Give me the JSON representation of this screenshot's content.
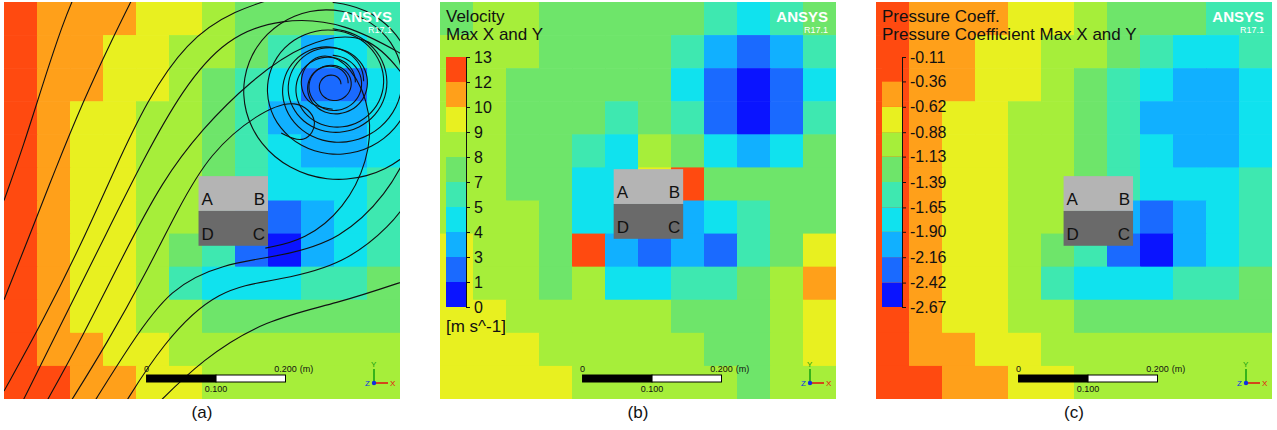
{
  "chart_data": [
    {
      "type": "streamlines",
      "panel_label": "(a)",
      "logo": "ANSYS",
      "version": "R17.1",
      "xlim": [
        0,
        0.57
      ],
      "ylim": [
        0,
        0.57
      ],
      "levels": [
        -2.67,
        -2.42,
        -2.16,
        -1.9,
        -1.65,
        -1.39,
        -1.13,
        -0.88,
        -0.62,
        -0.36,
        -0.11
      ],
      "colors": [
        "#0a14ff",
        "#1a6aff",
        "#11b0ff",
        "#10e2ee",
        "#3ee8b0",
        "#6ee56a",
        "#a6ee3a",
        "#e8f020",
        "#ffa01a",
        "#ff4a10"
      ],
      "cells": [
        [
          -0.2,
          -0.5,
          -0.5,
          -0.5,
          -0.75,
          -0.75,
          -1.0,
          -1.25,
          -1.25,
          -1.25,
          -1.5,
          -1.5
        ],
        [
          -0.2,
          -0.5,
          -0.5,
          -0.75,
          -0.75,
          -1.0,
          -1.0,
          -1.25,
          -1.5,
          -2.0,
          -1.78,
          -1.5
        ],
        [
          -0.2,
          -0.5,
          -0.5,
          -0.75,
          -0.75,
          -1.0,
          -1.25,
          -1.5,
          -1.78,
          -2.3,
          -2.3,
          -1.78
        ],
        [
          -0.2,
          -0.5,
          -0.75,
          -0.75,
          -1.0,
          -1.0,
          -1.25,
          -1.5,
          -2.0,
          -2.0,
          -2.0,
          -1.78
        ],
        [
          -0.2,
          -0.5,
          -0.75,
          -0.75,
          -1.0,
          -1.0,
          -1.25,
          -1.5,
          -1.78,
          -2.0,
          -2.0,
          -1.78
        ],
        [
          -0.2,
          -0.5,
          -0.75,
          -0.75,
          -1.0,
          -1.0,
          -1.25,
          -1.5,
          -1.78,
          -1.78,
          -1.78,
          -1.5
        ],
        [
          -0.2,
          -0.5,
          -0.75,
          -0.75,
          -1.0,
          -1.0,
          -1.5,
          -2.0,
          -2.3,
          -2.0,
          -1.78,
          -1.5
        ],
        [
          -0.2,
          -0.5,
          -0.75,
          -0.75,
          -1.0,
          -1.25,
          -1.5,
          -2.3,
          -2.55,
          -2.0,
          -1.78,
          -1.5
        ],
        [
          -0.2,
          -0.5,
          -0.75,
          -0.75,
          -1.0,
          -1.5,
          -1.78,
          -1.78,
          -1.78,
          -1.5,
          -1.5,
          -1.25
        ],
        [
          -0.2,
          -0.5,
          -0.75,
          -0.75,
          -1.0,
          -1.0,
          -1.25,
          -1.25,
          -1.25,
          -1.25,
          -1.25,
          -1.25
        ],
        [
          -0.2,
          -0.5,
          -0.5,
          -0.75,
          -0.75,
          -1.0,
          -1.0,
          -1.0,
          -1.0,
          -1.0,
          -1.0,
          -1.0
        ],
        [
          -0.2,
          -0.2,
          -0.5,
          -0.5,
          -0.75,
          -0.75,
          -1.0,
          -1.0,
          -1.0,
          -1.0,
          -1.0,
          -1.0
        ]
      ],
      "building": {
        "x": [
          0.28,
          0.38
        ],
        "y": [
          0.22,
          0.32
        ],
        "labels": [
          "A",
          "B",
          "C",
          "D"
        ]
      },
      "scale_bar": {
        "ticks": [
          0,
          {
            "value": 0.1,
            "label": "0.100"
          },
          {
            "value": 0.2,
            "label": "0.200"
          }
        ],
        "unit": "(m)"
      },
      "axes_triad": [
        "X",
        "Y",
        "Z"
      ]
    },
    {
      "type": "contour",
      "panel_label": "(b)",
      "logo": "ANSYS",
      "version": "R17.1",
      "title": "Velocity",
      "subtitle": "Max X and Y",
      "unit": "[m s^-1]",
      "xlim": [
        0,
        0.57
      ],
      "ylim": [
        0,
        0.57
      ],
      "colorbar_range": [
        0,
        13
      ],
      "colorbar_ticks": [
        0,
        {
          "value": 1.3,
          "label": "1"
        },
        {
          "value": 2.6,
          "label": "3"
        },
        {
          "value": 3.9,
          "label": "4"
        },
        {
          "value": 5.2,
          "label": "5"
        },
        {
          "value": 6.5,
          "label": "7"
        },
        {
          "value": 7.8,
          "label": "8"
        },
        {
          "value": 9.1,
          "label": "9"
        },
        {
          "value": 10.4,
          "label": "10"
        },
        {
          "value": 11.7,
          "label": "12"
        },
        13
      ],
      "colors": [
        "#0a14ff",
        "#1a6aff",
        "#11b0ff",
        "#10e2ee",
        "#3ee8b0",
        "#6ee56a",
        "#a6ee3a",
        "#e8f020",
        "#ffa01a",
        "#ff4a10"
      ],
      "cells": [
        [
          7.15,
          8.45,
          8.45,
          7.15,
          7.15,
          7.15,
          7.15,
          7.15,
          5.85,
          4.55,
          5.85,
          7.15
        ],
        [
          8.45,
          8.45,
          8.45,
          7.15,
          7.15,
          7.15,
          7.15,
          5.85,
          3.25,
          1.95,
          3.25,
          5.85
        ],
        [
          8.45,
          8.45,
          7.15,
          7.15,
          7.15,
          7.15,
          7.15,
          4.55,
          1.95,
          0.65,
          1.95,
          4.55
        ],
        [
          8.45,
          8.45,
          7.15,
          7.15,
          7.15,
          5.85,
          7.15,
          5.85,
          1.95,
          0.65,
          1.95,
          5.85
        ],
        [
          8.45,
          8.45,
          7.15,
          7.15,
          5.85,
          4.55,
          8.45,
          7.15,
          4.55,
          3.25,
          4.55,
          7.15
        ],
        [
          8.45,
          8.45,
          7.15,
          7.15,
          4.55,
          4.55,
          9.75,
          12.35,
          7.15,
          7.15,
          7.15,
          7.15
        ],
        [
          8.45,
          8.45,
          8.45,
          7.15,
          4.55,
          4.55,
          4.55,
          3.25,
          4.55,
          5.85,
          7.15,
          7.15
        ],
        [
          9.75,
          8.45,
          8.45,
          7.15,
          12.35,
          3.25,
          1.95,
          3.25,
          1.95,
          5.85,
          7.15,
          9.75
        ],
        [
          9.75,
          8.45,
          8.45,
          7.15,
          8.45,
          4.55,
          4.55,
          5.85,
          5.85,
          7.15,
          8.45,
          11.05
        ],
        [
          9.75,
          9.75,
          8.45,
          8.45,
          8.45,
          8.45,
          8.45,
          7.15,
          7.15,
          7.15,
          8.45,
          9.75
        ],
        [
          9.75,
          9.75,
          9.75,
          8.45,
          8.45,
          8.45,
          8.45,
          8.45,
          7.15,
          7.15,
          8.45,
          9.75
        ],
        [
          9.75,
          9.75,
          9.75,
          9.75,
          8.45,
          8.45,
          8.45,
          8.45,
          8.45,
          7.15,
          8.45,
          8.45
        ]
      ],
      "building": {
        "x": [
          0.25,
          0.35
        ],
        "y": [
          0.23,
          0.33
        ],
        "labels": [
          "A",
          "B",
          "C",
          "D"
        ]
      },
      "scale_bar": {
        "ticks": [
          0,
          {
            "value": 0.1,
            "label": "0.100"
          },
          {
            "value": 0.2,
            "label": "0.200"
          }
        ],
        "unit": "(m)"
      },
      "axes_triad": [
        "X",
        "Y",
        "Z"
      ]
    },
    {
      "type": "contour",
      "panel_label": "(c)",
      "logo": "ANSYS",
      "version": "R17.1",
      "title": "Pressure Coeff.",
      "subtitle": "Pressure Coefficient Max X and Y",
      "xlim": [
        0,
        0.57
      ],
      "ylim": [
        0,
        0.57
      ],
      "colorbar_range": [
        -2.67,
        -0.11
      ],
      "colorbar_ticks": [
        -2.67,
        -2.42,
        -2.16,
        {
          "value": -1.9,
          "label": "-1.90"
        },
        -1.65,
        -1.39,
        -1.13,
        -0.88,
        -0.62,
        -0.36,
        -0.11
      ],
      "colors": [
        "#0a14ff",
        "#1a6aff",
        "#11b0ff",
        "#10e2ee",
        "#3ee8b0",
        "#6ee56a",
        "#a6ee3a",
        "#e8f020",
        "#ffa01a",
        "#ff4a10"
      ],
      "cells": [
        [
          -0.2,
          -0.5,
          -0.5,
          -0.5,
          -0.75,
          -0.75,
          -1.0,
          -1.25,
          -1.25,
          -1.25,
          -1.5,
          -1.5
        ],
        [
          -0.2,
          -0.5,
          -0.5,
          -0.75,
          -0.75,
          -1.0,
          -1.0,
          -1.25,
          -1.5,
          -1.78,
          -1.78,
          -1.5
        ],
        [
          -0.2,
          -0.5,
          -0.5,
          -0.75,
          -0.75,
          -1.0,
          -1.25,
          -1.5,
          -1.78,
          -2.0,
          -2.0,
          -1.78
        ],
        [
          -0.2,
          -0.5,
          -0.75,
          -0.75,
          -1.0,
          -1.0,
          -1.25,
          -1.5,
          -2.0,
          -2.0,
          -2.0,
          -1.78
        ],
        [
          -0.2,
          -0.5,
          -0.75,
          -0.75,
          -1.0,
          -1.0,
          -1.25,
          -1.5,
          -1.78,
          -2.0,
          -2.0,
          -1.78
        ],
        [
          -0.2,
          -0.5,
          -0.75,
          -0.75,
          -1.0,
          -1.0,
          -1.25,
          -1.5,
          -1.78,
          -1.78,
          -1.78,
          -1.5
        ],
        [
          -0.2,
          -0.5,
          -0.75,
          -0.75,
          -1.0,
          -1.0,
          -1.5,
          -2.0,
          -2.3,
          -2.0,
          -1.78,
          -1.5
        ],
        [
          -0.2,
          -0.5,
          -0.75,
          -0.75,
          -1.0,
          -1.25,
          -1.5,
          -2.3,
          -2.55,
          -2.0,
          -1.78,
          -1.5
        ],
        [
          -0.2,
          -0.5,
          -0.75,
          -0.75,
          -1.0,
          -1.5,
          -1.78,
          -1.78,
          -1.78,
          -1.5,
          -1.5,
          -1.25
        ],
        [
          -0.2,
          -0.5,
          -0.75,
          -0.75,
          -1.0,
          -1.0,
          -1.25,
          -1.25,
          -1.25,
          -1.25,
          -1.25,
          -1.25
        ],
        [
          -0.2,
          -0.5,
          -0.5,
          -0.75,
          -0.75,
          -1.0,
          -1.0,
          -1.0,
          -1.0,
          -1.0,
          -1.0,
          -1.0
        ],
        [
          -0.2,
          -0.2,
          -0.5,
          -0.5,
          -0.75,
          -0.75,
          -1.0,
          -1.0,
          -1.0,
          -1.0,
          -1.0,
          -1.0
        ]
      ],
      "building": {
        "x": [
          0.27,
          0.37
        ],
        "y": [
          0.22,
          0.32
        ],
        "labels": [
          "A",
          "B",
          "C",
          "D"
        ]
      },
      "scale_bar": {
        "ticks": [
          0,
          {
            "value": 0.1,
            "label": "0.100"
          },
          {
            "value": 0.2,
            "label": "0.200"
          }
        ],
        "unit": "(m)"
      },
      "axes_triad": [
        "X",
        "Y",
        "Z"
      ]
    }
  ]
}
